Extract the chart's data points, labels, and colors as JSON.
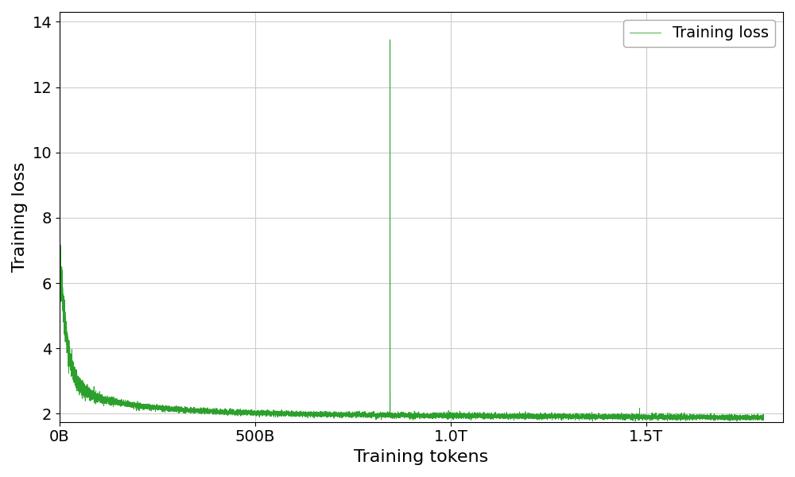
{
  "xlabel": "Training tokens",
  "ylabel": "Training loss",
  "line_color": "#2ca02c",
  "line_width": 0.6,
  "ylim": [
    1.75,
    14.3
  ],
  "xlim": [
    0,
    1850000000000.0
  ],
  "yticks": [
    2,
    4,
    6,
    8,
    10,
    12,
    14
  ],
  "xtick_labels": [
    "0B",
    "500B",
    "1.0T",
    "1.5T"
  ],
  "xtick_values": [
    0,
    500000000000.0,
    1000000000000.0,
    1500000000000.0
  ],
  "legend_label": "Training loss",
  "background_color": "#ffffff",
  "grid_color": "#cccccc",
  "spike_token": 845000000000.0,
  "spike_peak": 13.45,
  "total_tokens": 1800000000000.0,
  "start_loss": 6.1,
  "end_loss": 1.85,
  "figsize": [
    10.0,
    6.0
  ],
  "dpi": 100
}
